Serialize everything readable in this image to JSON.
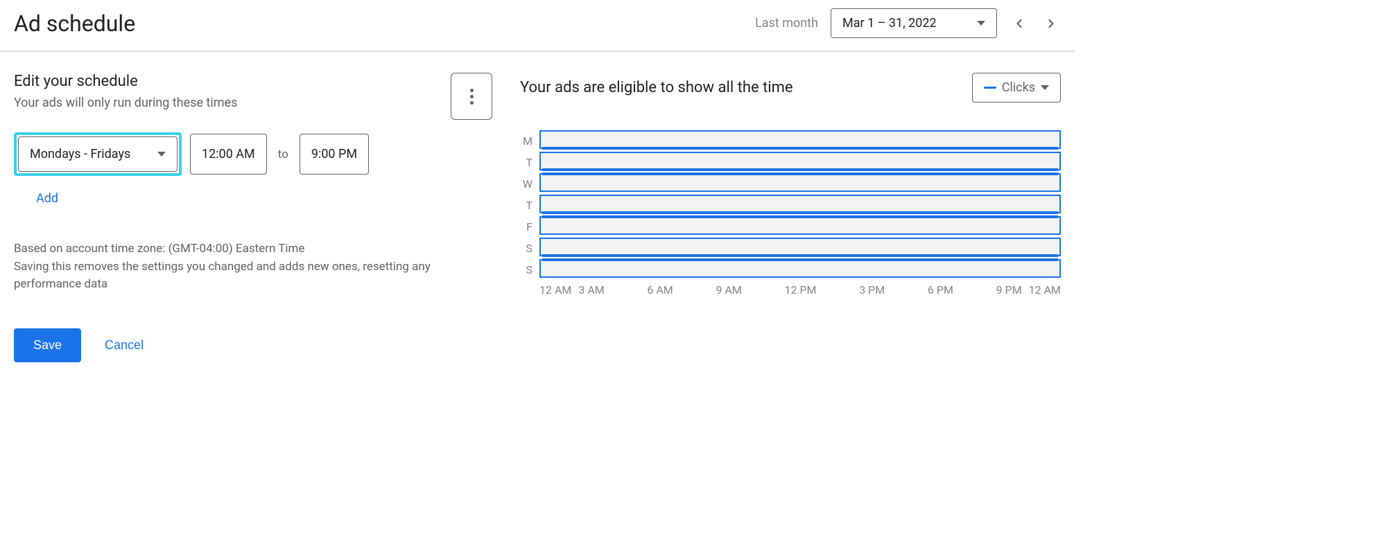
{
  "header": {
    "title": "Ad schedule",
    "period_label": "Last month",
    "date_range": "Mar 1 – 31, 2022"
  },
  "editor": {
    "heading": "Edit your schedule",
    "subheading": "Your ads will only run during these times",
    "row": {
      "days": "Mondays - Fridays",
      "start_time": "12:00 AM",
      "to_label": "to",
      "end_time": "9:00 PM"
    },
    "add_label": "Add",
    "footnote_line1": "Based on account time zone: (GMT-04:00) Eastern Time",
    "footnote_line2": "Saving this removes the settings you changed and adds new ones, resetting any performance data",
    "save_label": "Save",
    "cancel_label": "Cancel"
  },
  "chart": {
    "eligible_text": "Your ads are eligible to show all the time",
    "metric_label": "Clicks",
    "days": [
      "M",
      "T",
      "W",
      "T",
      "F",
      "S",
      "S"
    ],
    "fill_positions": [
      "bottom",
      "bottom",
      "top",
      "bottom",
      "top",
      "bottom",
      "top"
    ],
    "time_ticks_left": [
      "12 AM",
      "3 AM"
    ],
    "time_ticks_mid": [
      "6 AM",
      "9 AM",
      "12 PM",
      "3 PM",
      "6 PM"
    ],
    "time_ticks_right": [
      "9 PM",
      "12 AM"
    ],
    "colors": {
      "accent": "#1a73e8",
      "bar_bg": "#f1f3f4",
      "highlight_border": "#3ad1e8",
      "muted_text": "#80868b"
    }
  }
}
